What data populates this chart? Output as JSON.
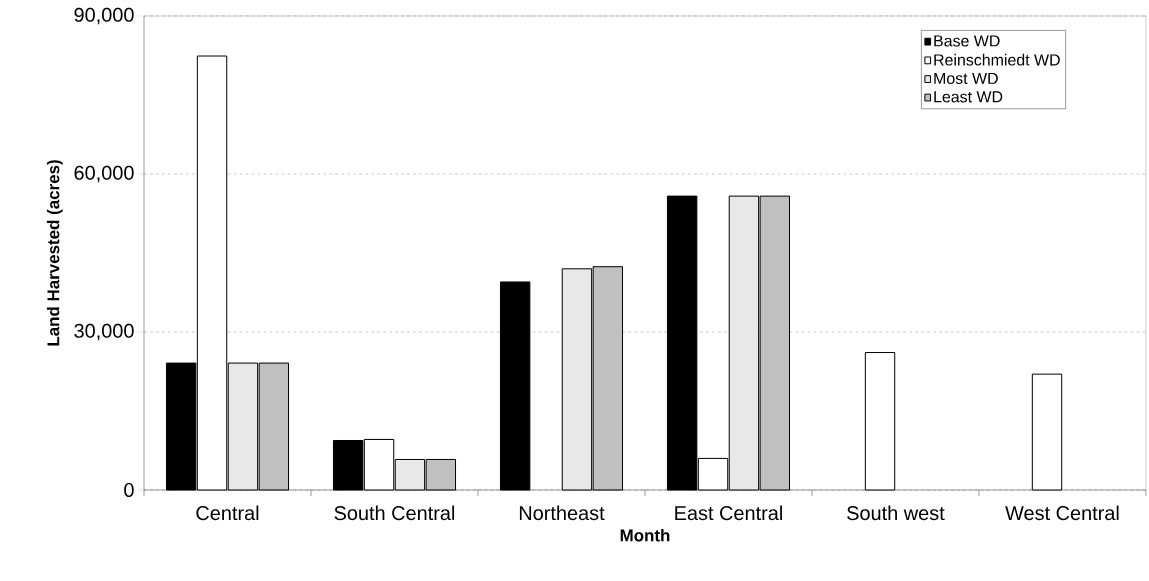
{
  "chart_data": {
    "type": "bar",
    "xlabel": "Month",
    "ylabel": "Land Harvested (acres)",
    "categories": [
      "Central",
      "South Central",
      "Northeast",
      "East Central",
      "South west",
      "West Central"
    ],
    "series": [
      {
        "name": "Base WD",
        "color": "#000000",
        "values": [
          24100,
          9400,
          39500,
          55800,
          null,
          null
        ]
      },
      {
        "name": "Reinschmiedt WD",
        "color": "#ffffff",
        "values": [
          82400,
          9600,
          null,
          6000,
          26100,
          22000
        ]
      },
      {
        "name": "Most WD",
        "color": "#e8e8e8",
        "values": [
          24100,
          5800,
          42000,
          55800,
          null,
          null
        ]
      },
      {
        "name": "Least WD",
        "color": "#c0c0c0",
        "values": [
          24100,
          5800,
          42400,
          55800,
          null,
          null
        ]
      }
    ],
    "ylim": [
      0,
      90000
    ],
    "yticks": [
      0,
      {
        "value": 30000,
        "label": "30,000"
      },
      {
        "value": 60000,
        "label": "60,000"
      },
      {
        "value": 90000,
        "label": "90,000"
      }
    ],
    "grid": "y",
    "legend": "top right"
  }
}
